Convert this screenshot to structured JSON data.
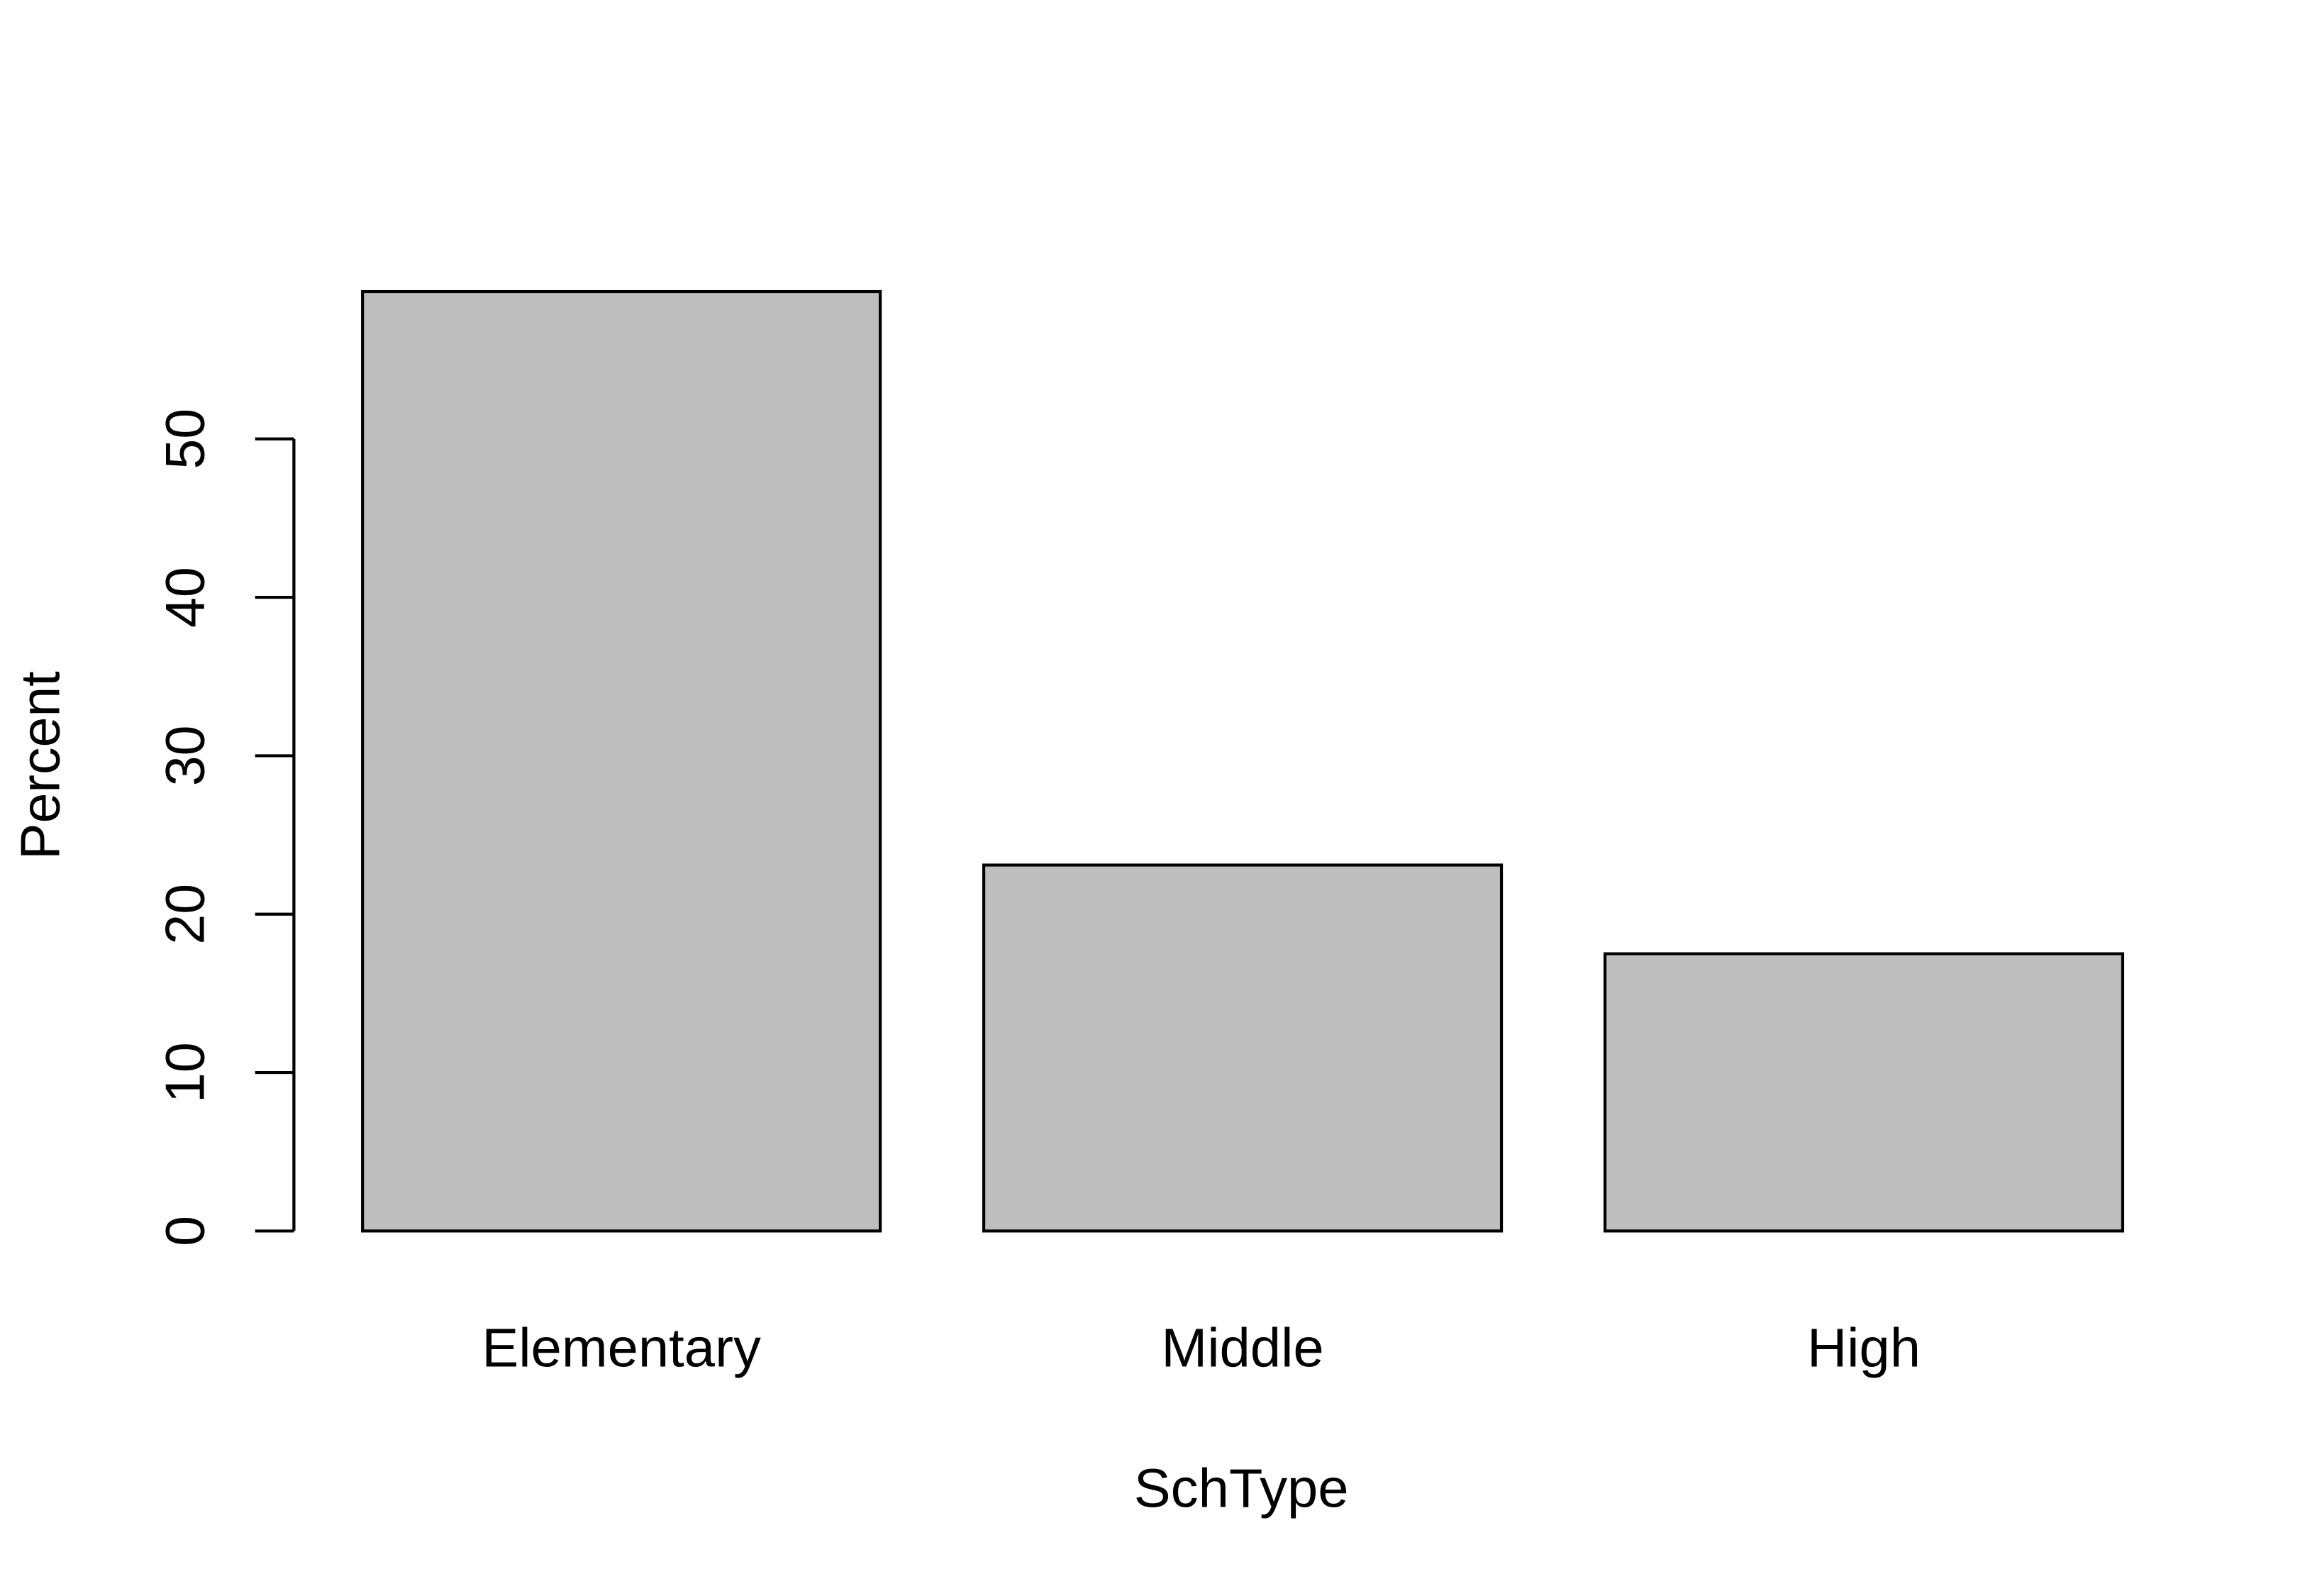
{
  "chart_data": {
    "type": "bar",
    "categories": [
      "Elementary",
      "Middle",
      "High"
    ],
    "values": [
      59.3,
      23.1,
      17.5
    ],
    "color": "#bebebe",
    "xlabel": "SchType",
    "ylabel": "Percent",
    "ylim": [
      0,
      61.7
    ],
    "yticks": [
      0,
      10,
      20,
      30,
      40,
      50
    ]
  }
}
